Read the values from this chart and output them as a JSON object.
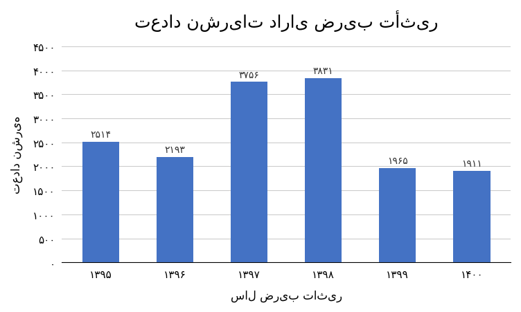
{
  "title": "تعداد نشریات دارای ضریب تأثیر",
  "xlabel": "سال ضریب تاثیر",
  "ylabel": "تعداد نشریه",
  "categories": [
    "۱۳۹۵",
    "۱۳۹۶",
    "۱۳۹۷",
    "۱۳۹۸",
    "۱۳۹۹",
    "۱۴۰۰"
  ],
  "values": [
    2514,
    2193,
    3756,
    3831,
    1965,
    1911
  ],
  "bar_labels": [
    "۲۵۱۴",
    "۲۱۹۳",
    "۳۷۵۶",
    "۳۸۳۱",
    "۱۹۶۵",
    "۱۹۱۱"
  ],
  "bar_color": "#4472C4",
  "background_color": "#ffffff",
  "ylim": [
    0,
    4500
  ],
  "yticks": [
    0,
    500,
    1000,
    1500,
    2000,
    2500,
    3000,
    3500,
    4000,
    4500
  ],
  "ytick_labels": [
    "۰",
    "۵۰۰",
    "۱۰۰۰",
    "۱۵۰۰",
    "۲۰۰۰",
    "۲۵۰۰",
    "۳۰۰۰",
    "۳۵۰۰",
    "۴۰۰۰",
    "۴۵۰۰"
  ],
  "title_fontsize": 18,
  "label_fontsize": 12,
  "tick_fontsize": 11,
  "bar_label_fontsize": 10,
  "grid_color": "#cccccc",
  "bar_width": 0.5
}
